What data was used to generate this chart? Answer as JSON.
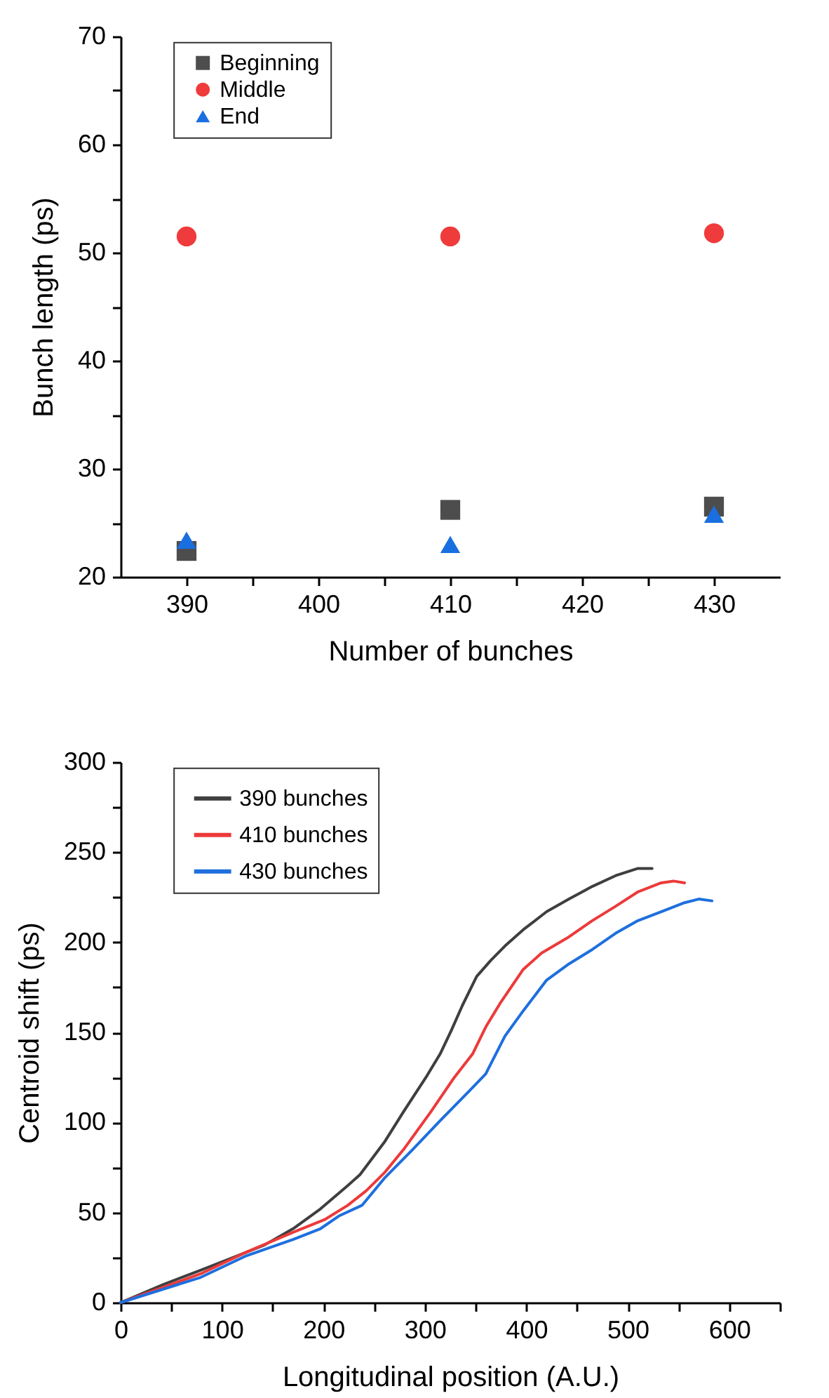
{
  "chart_data": [
    {
      "type": "scatter",
      "xlabel": "Number of bunches",
      "ylabel": "Bunch length (ps)",
      "x": [
        390,
        410,
        430
      ],
      "xlim": [
        385,
        435
      ],
      "xticks": [
        390,
        {
          "value": 395,
          "label": null
        },
        400,
        {
          "value": 405,
          "label": null
        },
        410,
        {
          "value": 415,
          "label": null
        },
        420,
        {
          "value": 425,
          "label": null
        },
        430
      ],
      "ylim": [
        20,
        70
      ],
      "yticks": [
        20,
        {
          "value": 25,
          "label": null
        },
        30,
        {
          "value": 35,
          "label": null
        },
        40,
        {
          "value": 45,
          "label": null
        },
        50,
        {
          "value": 55,
          "label": null
        },
        60,
        {
          "value": 65,
          "label": null
        },
        70
      ],
      "legend": "top left",
      "grid": false,
      "series": [
        {
          "name": "Beginning",
          "color": "#4d4d4d",
          "marker": "square",
          "values": [
            22.4,
            26.2,
            26.5
          ]
        },
        {
          "name": "Middle",
          "color": "#ef3b3b",
          "marker": "circle",
          "values": [
            51.5,
            51.5,
            51.8
          ]
        },
        {
          "name": "End",
          "color": "#1a6fe0",
          "marker": "triangle",
          "values": [
            23.4,
            23.0,
            25.8
          ]
        }
      ]
    },
    {
      "type": "line",
      "xlabel": "Longitudinal position (A.U.)",
      "ylabel": "Centroid shift (ps)",
      "xlim": [
        0,
        650
      ],
      "xticks": [
        0,
        {
          "value": 50,
          "label": null
        },
        100,
        {
          "value": 150,
          "label": null
        },
        200,
        {
          "value": 250,
          "label": null
        },
        300,
        {
          "value": 350,
          "label": null
        },
        400,
        {
          "value": 450,
          "label": null
        },
        500,
        {
          "value": 550,
          "label": null
        },
        600,
        {
          "value": 650,
          "label": null
        }
      ],
      "ylim": [
        0,
        300
      ],
      "yticks": [
        0,
        {
          "value": 25,
          "label": null
        },
        50,
        {
          "value": 75,
          "label": null
        },
        100,
        {
          "value": 125,
          "label": null
        },
        150,
        {
          "value": 175,
          "label": null
        },
        200,
        {
          "value": 225,
          "label": null
        },
        250,
        {
          "value": 275,
          "label": null
        },
        300
      ],
      "legend": "top left",
      "grid": false,
      "line_style": "solid",
      "marker": "none",
      "series": [
        {
          "name": "390 bunches",
          "color": "#3f3f3f",
          "x": [
            0,
            42,
            79,
            120,
            142,
            170,
            197,
            224,
            236,
            260,
            279,
            301,
            315,
            326,
            337,
            351,
            365,
            379,
            397,
            420,
            442,
            465,
            488,
            510,
            524
          ],
          "values": [
            0,
            10,
            18,
            27,
            32,
            41,
            52,
            65,
            71,
            89,
            106,
            125,
            138,
            151,
            165,
            181,
            190,
            198,
            207,
            217,
            224,
            231,
            237,
            241,
            241
          ]
        },
        {
          "name": "410 bunches",
          "color": "#ec3a3a",
          "x": [
            0,
            79,
            124,
            170,
            201,
            224,
            242,
            260,
            279,
            306,
            329,
            347,
            360,
            374,
            397,
            415,
            442,
            465,
            488,
            510,
            533,
            545,
            556
          ],
          "values": [
            0,
            16,
            28,
            39,
            46,
            54,
            62,
            72,
            85,
            106,
            125,
            138,
            153,
            166,
            185,
            194,
            203,
            212,
            220,
            228,
            233,
            234,
            233
          ]
        },
        {
          "name": "430 bunches",
          "color": "#1e6fdd",
          "x": [
            0,
            79,
            124,
            170,
            197,
            215,
            238,
            260,
            288,
            315,
            343,
            360,
            379,
            397,
            420,
            442,
            465,
            488,
            510,
            533,
            556,
            570,
            583
          ],
          "values": [
            0,
            14,
            26,
            35,
            41,
            48,
            54,
            69,
            85,
            101,
            117,
            127,
            148,
            162,
            179,
            188,
            196,
            205,
            212,
            217,
            222,
            224,
            223
          ]
        }
      ]
    }
  ]
}
